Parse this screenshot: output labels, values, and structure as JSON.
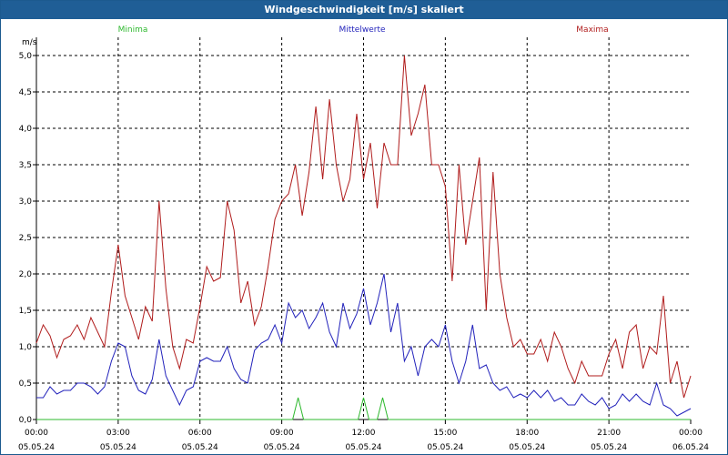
{
  "window": {
    "title": "Windgeschwindigkeit [m/s] skaliert"
  },
  "chart_data": {
    "type": "line",
    "title": "Windgeschwindigkeit [m/s] skaliert",
    "ylabel": "m/s",
    "ylim": [
      0,
      5.0
    ],
    "xlim_hours": [
      0,
      24
    ],
    "grid": true,
    "legend_placement": "top",
    "y_ticks": [
      "0,0",
      "0,5",
      "1,0",
      "1,5",
      "2,0",
      "2,5",
      "3,0",
      "3,5",
      "4,0",
      "4,5",
      "5,0"
    ],
    "x_ticks": [
      {
        "time": "00:00",
        "date": "05.05.24"
      },
      {
        "time": "03:00",
        "date": "05.05.24"
      },
      {
        "time": "06:00",
        "date": "05.05.24"
      },
      {
        "time": "09:00",
        "date": "05.05.24"
      },
      {
        "time": "12:00",
        "date": "05.05.24"
      },
      {
        "time": "15:00",
        "date": "05.05.24"
      },
      {
        "time": "18:00",
        "date": "05.05.24"
      },
      {
        "time": "21:00",
        "date": "05.05.24"
      },
      {
        "time": "00:00",
        "date": "06.05.24"
      }
    ],
    "series": [
      {
        "name": "Minima",
        "color": "#2db82d",
        "x": [
          0,
          9.4,
          9.6,
          9.8,
          11.8,
          12.0,
          12.2,
          12.5,
          12.7,
          12.9,
          24
        ],
        "y": [
          0,
          0,
          0.3,
          0,
          0,
          0.3,
          0,
          0,
          0.3,
          0,
          0
        ]
      },
      {
        "name": "Mittelwerte",
        "color": "#2222bb",
        "x": [
          0,
          0.25,
          0.5,
          0.75,
          1.0,
          1.25,
          1.5,
          1.75,
          2.0,
          2.25,
          2.5,
          2.75,
          3.0,
          3.25,
          3.5,
          3.75,
          4.0,
          4.25,
          4.5,
          4.75,
          5.0,
          5.25,
          5.5,
          5.75,
          6.0,
          6.25,
          6.5,
          6.75,
          7.0,
          7.25,
          7.5,
          7.75,
          8.0,
          8.25,
          8.5,
          8.75,
          9.0,
          9.25,
          9.5,
          9.75,
          10.0,
          10.25,
          10.5,
          10.75,
          11.0,
          11.25,
          11.5,
          11.75,
          12.0,
          12.25,
          12.5,
          12.75,
          13.0,
          13.25,
          13.5,
          13.75,
          14.0,
          14.25,
          14.5,
          14.75,
          15.0,
          15.25,
          15.5,
          15.75,
          16.0,
          16.25,
          16.5,
          16.75,
          17.0,
          17.25,
          17.5,
          17.75,
          18.0,
          18.25,
          18.5,
          18.75,
          19.0,
          19.25,
          19.5,
          19.75,
          20.0,
          20.25,
          20.5,
          20.75,
          21.0,
          21.25,
          21.5,
          21.75,
          22.0,
          22.25,
          22.5,
          22.75,
          23.0,
          23.25,
          23.5,
          23.75,
          24.0
        ],
        "y": [
          0.3,
          0.3,
          0.45,
          0.35,
          0.4,
          0.4,
          0.5,
          0.5,
          0.45,
          0.35,
          0.45,
          0.8,
          1.05,
          1.0,
          0.6,
          0.4,
          0.35,
          0.55,
          1.1,
          0.6,
          0.4,
          0.2,
          0.4,
          0.45,
          0.8,
          0.85,
          0.8,
          0.8,
          1.0,
          0.7,
          0.55,
          0.5,
          0.95,
          1.05,
          1.1,
          1.3,
          1.05,
          1.6,
          1.4,
          1.5,
          1.25,
          1.4,
          1.6,
          1.2,
          1.0,
          1.6,
          1.25,
          1.45,
          1.8,
          1.3,
          1.6,
          2.0,
          1.2,
          1.6,
          0.8,
          1.0,
          0.6,
          1.0,
          1.1,
          1.0,
          1.3,
          0.8,
          0.5,
          0.8,
          1.3,
          0.7,
          0.75,
          0.5,
          0.4,
          0.45,
          0.3,
          0.35,
          0.3,
          0.4,
          0.3,
          0.4,
          0.25,
          0.3,
          0.2,
          0.2,
          0.35,
          0.25,
          0.2,
          0.3,
          0.15,
          0.2,
          0.35,
          0.25,
          0.35,
          0.25,
          0.2,
          0.5,
          0.2,
          0.15,
          0.05,
          0.1,
          0.15
        ]
      },
      {
        "name": "Maxima",
        "color": "#b01c1c",
        "x": [
          0,
          0.25,
          0.5,
          0.75,
          1.0,
          1.25,
          1.5,
          1.75,
          2.0,
          2.25,
          2.5,
          2.75,
          3.0,
          3.25,
          3.5,
          3.75,
          4.0,
          4.25,
          4.5,
          4.75,
          5.0,
          5.25,
          5.5,
          5.75,
          6.0,
          6.25,
          6.5,
          6.75,
          7.0,
          7.25,
          7.5,
          7.75,
          8.0,
          8.25,
          8.5,
          8.75,
          9.0,
          9.25,
          9.5,
          9.75,
          10.0,
          10.25,
          10.5,
          10.75,
          11.0,
          11.25,
          11.5,
          11.75,
          12.0,
          12.25,
          12.5,
          12.75,
          13.0,
          13.25,
          13.5,
          13.75,
          14.0,
          14.25,
          14.5,
          14.75,
          15.0,
          15.25,
          15.5,
          15.75,
          16.0,
          16.25,
          16.5,
          16.75,
          17.0,
          17.25,
          17.5,
          17.75,
          18.0,
          18.25,
          18.5,
          18.75,
          19.0,
          19.25,
          19.5,
          19.75,
          20.0,
          20.25,
          20.5,
          20.75,
          21.0,
          21.25,
          21.5,
          21.75,
          22.0,
          22.25,
          22.5,
          22.75,
          23.0,
          23.25,
          23.5,
          23.75,
          24.0
        ],
        "y": [
          1.05,
          1.3,
          1.15,
          0.85,
          1.1,
          1.15,
          1.3,
          1.1,
          1.4,
          1.2,
          1.0,
          1.75,
          2.4,
          1.7,
          1.4,
          1.1,
          1.55,
          1.35,
          3.0,
          1.8,
          1.0,
          0.7,
          1.1,
          1.05,
          1.55,
          2.1,
          1.9,
          1.95,
          3.0,
          2.6,
          1.6,
          1.9,
          1.3,
          1.55,
          2.1,
          2.75,
          3.0,
          3.1,
          3.5,
          2.8,
          3.4,
          4.3,
          3.3,
          4.4,
          3.5,
          3.0,
          3.3,
          4.2,
          3.3,
          3.8,
          2.9,
          3.8,
          3.5,
          3.5,
          5.0,
          3.9,
          4.2,
          4.6,
          3.5,
          3.5,
          3.2,
          1.9,
          3.5,
          2.4,
          3.0,
          3.6,
          1.5,
          3.4,
          2.0,
          1.4,
          1.0,
          1.1,
          0.9,
          0.9,
          1.1,
          0.8,
          1.2,
          1.0,
          0.7,
          0.5,
          0.8,
          0.6,
          0.6,
          0.6,
          0.9,
          1.1,
          0.7,
          1.2,
          1.3,
          0.7,
          1.0,
          0.9,
          1.7,
          0.5,
          0.8,
          0.3,
          0.6
        ]
      }
    ]
  }
}
